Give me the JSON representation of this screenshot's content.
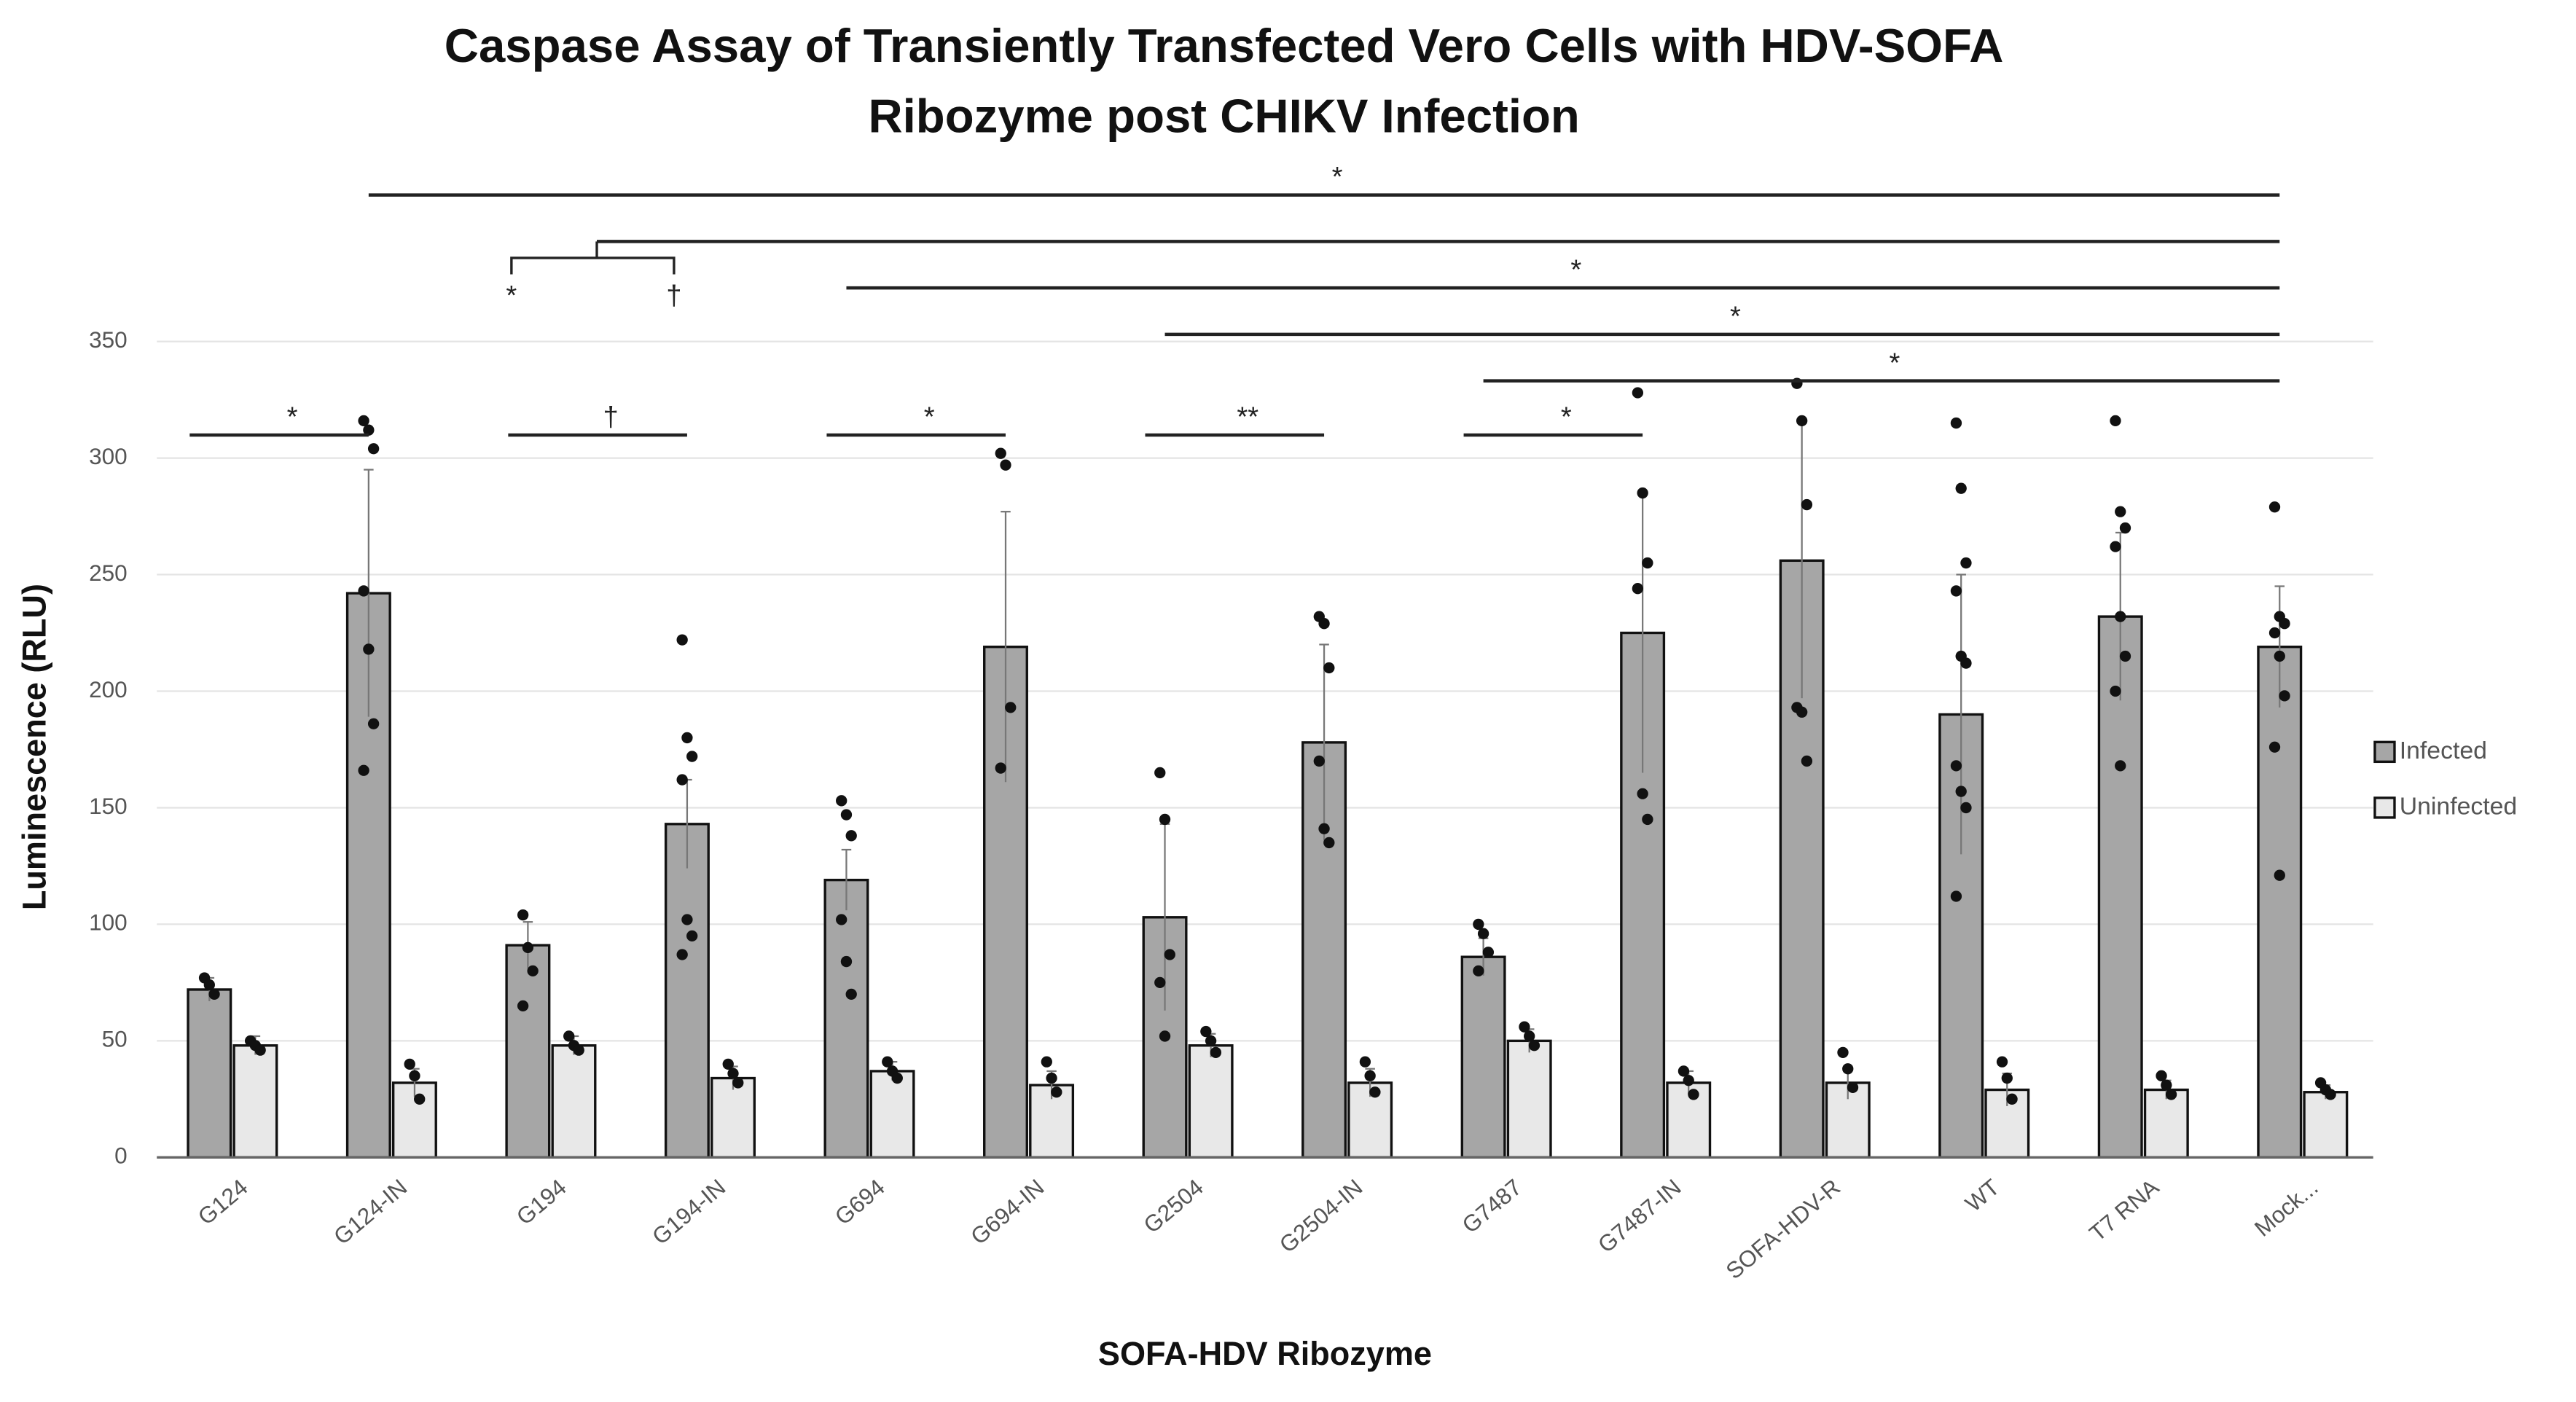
{
  "chart_data": {
    "type": "bar",
    "title": [
      "Caspase Assay of Transiently Transfected Vero Cells with HDV-SOFA",
      "Ribozyme post CHIKV Infection"
    ],
    "x_label": "SOFA-HDV Ribozyme",
    "y_label": "Luminescence (RLU)",
    "categories": [
      "G124",
      "G124-IN",
      "G194",
      "G194-IN",
      "G694",
      "G694-IN",
      "G2504",
      "G2504-IN",
      "G7487",
      "G7487-IN",
      "SOFA-HDV-R",
      "WT",
      "T7 RNA",
      "Mock..."
    ],
    "series": [
      {
        "name": "Infected",
        "color": "#a6a6a6",
        "values": [
          72,
          242,
          91,
          143,
          119,
          219,
          103,
          178,
          86,
          225,
          256,
          190,
          232,
          219
        ],
        "errors": [
          5,
          53,
          10,
          19,
          13,
          58,
          40,
          42,
          8,
          60,
          59,
          60,
          36,
          26
        ],
        "points": [
          [
            77,
            74,
            70
          ],
          [
            316,
            312,
            304,
            243,
            218,
            186,
            166
          ],
          [
            104,
            90,
            80,
            65
          ],
          [
            222,
            180,
            172,
            162,
            102,
            95,
            87
          ],
          [
            153,
            147,
            138,
            102,
            84,
            70
          ],
          [
            302,
            297,
            193,
            167
          ],
          [
            165,
            145,
            87,
            75,
            52
          ],
          [
            232,
            229,
            210,
            170,
            141,
            135
          ],
          [
            100,
            96,
            88,
            80
          ],
          [
            328,
            285,
            255,
            244,
            156,
            145
          ],
          [
            332,
            316,
            280,
            193,
            191,
            170
          ],
          [
            315,
            287,
            255,
            243,
            215,
            212,
            168,
            157,
            150,
            112
          ],
          [
            316,
            277,
            270,
            262,
            232,
            215,
            200,
            168
          ],
          [
            279,
            232,
            229,
            225,
            215,
            198,
            176,
            121
          ]
        ]
      },
      {
        "name": "Uninfected",
        "color": "#e8e8e8",
        "values": [
          48,
          32,
          48,
          34,
          37,
          31,
          48,
          32,
          50,
          32,
          32,
          29,
          29,
          28
        ],
        "errors": [
          4,
          6,
          4,
          5,
          4,
          6,
          5,
          6,
          5,
          5,
          7,
          7,
          4,
          3
        ],
        "points": [
          [
            50,
            48,
            46
          ],
          [
            40,
            35,
            25
          ],
          [
            52,
            48,
            46
          ],
          [
            40,
            36,
            32
          ],
          [
            41,
            37,
            34
          ],
          [
            41,
            34,
            28
          ],
          [
            54,
            50,
            45
          ],
          [
            41,
            35,
            28
          ],
          [
            56,
            52,
            48
          ],
          [
            37,
            33,
            27
          ],
          [
            45,
            38,
            30
          ],
          [
            41,
            34,
            25
          ],
          [
            35,
            31,
            27
          ],
          [
            32,
            29,
            27
          ]
        ]
      }
    ],
    "comparisons": [
      {
        "label": "*",
        "from": 0,
        "to": 1
      },
      {
        "label": "†",
        "from": 2,
        "to": 3
      },
      {
        "label": "*",
        "from": 4,
        "to": 5
      },
      {
        "label": "**",
        "from": 6,
        "to": 7
      },
      {
        "label": "*",
        "from": 8,
        "to": 9
      },
      {
        "label": "*",
        "from": 8,
        "to": 13
      },
      {
        "label": "*",
        "from": 6,
        "to": 13
      },
      {
        "label": "*",
        "from": 4,
        "to": 13
      },
      {
        "from": [
          2,
          3
        ],
        "to": 13,
        "labels": [
          "*",
          "†"
        ]
      },
      {
        "label": "*",
        "from": 1,
        "to": 13
      }
    ],
    "ylim": [
      0,
      350
    ],
    "yticks": [
      0,
      50,
      100,
      150,
      200,
      250,
      300,
      350
    ],
    "grid": true,
    "legend": "right"
  }
}
